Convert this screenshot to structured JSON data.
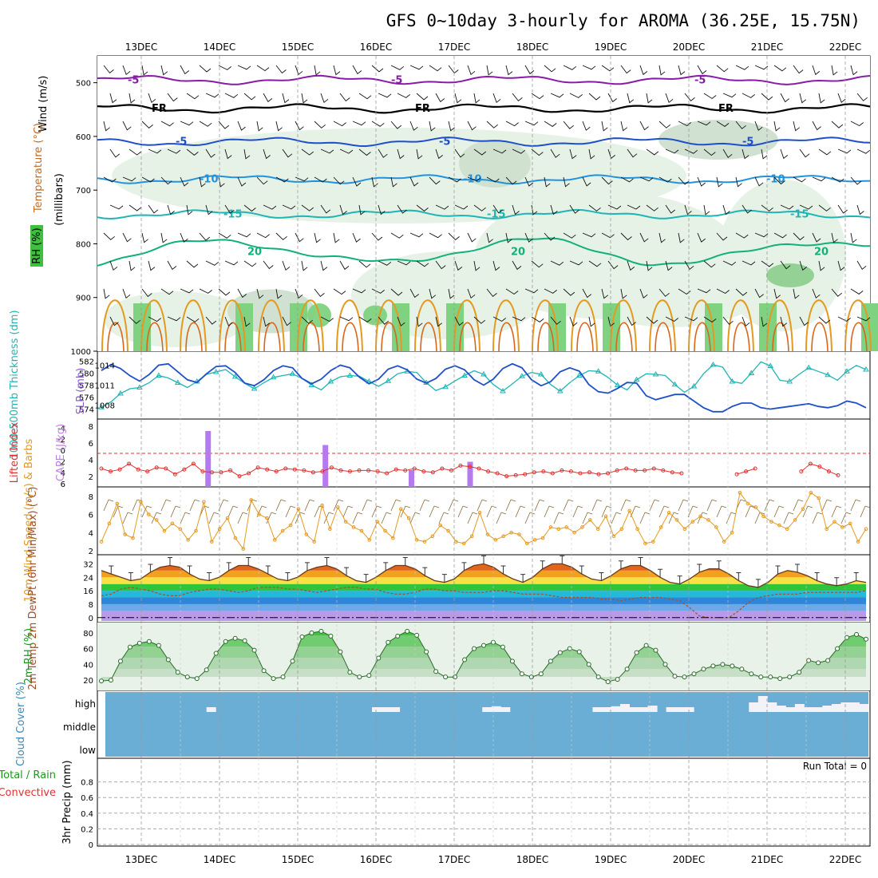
{
  "title": "GFS 0~10day 3-hourly for AROMA (36.25E, 15.75N)",
  "dates": [
    "13DEC",
    "14DEC",
    "15DEC",
    "16DEC",
    "17DEC",
    "18DEC",
    "19DEC",
    "20DEC",
    "21DEC",
    "22DEC"
  ],
  "colors": {
    "purple": "#8a1aa8",
    "blue": "#1f4fc8",
    "lightblue": "#1f93e0",
    "cyan": "#1fb5b5",
    "teal": "#12b07a",
    "orange": "#e49a20",
    "darkorange": "#d9661a",
    "magenta": "#c0157a",
    "rhgreen": "#3fbf3f",
    "cloud": "#6aaed6",
    "red": "#e03030",
    "cape": "#b57aee"
  },
  "chart_data": [
    {
      "type": "contour",
      "panel": "upper-air",
      "ylabel_parts": [
        "Wind (m/s)",
        "Temperature (°C)",
        "(millibars)"
      ],
      "rh_legend": "RH (%)",
      "ylim": [
        1000,
        450
      ],
      "yticks": [
        "500",
        "600",
        "700",
        "800",
        "900",
        "1000"
      ],
      "isotherms": [
        {
          "label": "-5",
          "level_mb": 495
        },
        {
          "label": "FR",
          "level_mb": 548
        },
        {
          "label": "-5",
          "level_mb": 610
        },
        {
          "label": "-10",
          "level_mb": 680
        },
        {
          "label": "-15",
          "level_mb": 745
        },
        {
          "label": "20",
          "level_mb": 815
        }
      ]
    },
    {
      "type": "line",
      "panel": "thickness-slp",
      "ylabel_left": "1000-500mb Thickness (dm)",
      "ylabel_right": "SLP (mb)",
      "yticks_left": [
        "582",
        "580",
        "578",
        "576",
        "574"
      ],
      "yticks_right": [
        "1014",
        "1011",
        "1008"
      ],
      "series": [
        {
          "name": "SLP",
          "values": [
            1013.2,
            1014.1,
            1013.5,
            1012.4,
            1011.6,
            1012.6,
            1014.0,
            1014.2,
            1013.0,
            1011.8,
            1011.4,
            1012.7,
            1013.8,
            1013.9,
            1012.9,
            1011.3,
            1010.9,
            1011.8,
            1013.2,
            1013.9,
            1013.6,
            1012.0,
            1011.2,
            1011.9,
            1013.2,
            1014.0,
            1013.6,
            1012.2,
            1011.2,
            1011.9,
            1013.4,
            1013.9,
            1013.3,
            1011.9,
            1011.3,
            1012.0,
            1013.4,
            1013.9,
            1013.3,
            1011.8,
            1011.0,
            1011.9,
            1013.5,
            1014.2,
            1013.6,
            1011.8,
            1010.9,
            1011.5,
            1013.0,
            1013.6,
            1013.1,
            1011.1,
            1010.0,
            1009.8,
            1010.5,
            1011.4,
            1011.3,
            1009.4,
            1008.8,
            1009.2,
            1009.6,
            1009.6,
            1008.6,
            1007.6,
            1007.0,
            1007.0,
            1007.8,
            1008.3,
            1008.3,
            1007.6,
            1007.4,
            1007.6,
            1007.8,
            1008.0,
            1008.2,
            1007.8,
            1007.6,
            1007.9,
            1008.6,
            1008.3,
            1007.6
          ]
        },
        {
          "name": "Thickness",
          "values": [
            574.3,
            575.2,
            576.6,
            577.4,
            577.6,
            578.4,
            579.6,
            579.2,
            578.4,
            577.6,
            578.6,
            579.8,
            580.2,
            580.6,
            579.4,
            578.3,
            577.4,
            578.4,
            579.3,
            579.6,
            579.9,
            579.1,
            578.0,
            577.2,
            578.6,
            579.4,
            579.6,
            579.5,
            578.6,
            577.8,
            578.7,
            579.9,
            580.3,
            580.1,
            578.4,
            577.1,
            577.7,
            578.7,
            579.6,
            580.4,
            579.8,
            578.1,
            577.0,
            578.2,
            579.5,
            580.1,
            579.8,
            578.1,
            577.0,
            578.4,
            579.6,
            580.4,
            580.3,
            579.3,
            578.0,
            577.2,
            578.9,
            579.9,
            579.8,
            579.6,
            578.1,
            576.8,
            577.8,
            579.9,
            581.4,
            581.0,
            578.6,
            578.3,
            580.0,
            581.9,
            581.2,
            578.8,
            578.6,
            579.8,
            580.9,
            580.3,
            579.7,
            578.8,
            580.3,
            581.3,
            580.6
          ]
        }
      ]
    },
    {
      "type": "bar+line",
      "panel": "cape-li",
      "ylabel_left": "Lifted Index",
      "ylabel_right": "CAPE (J/kg)",
      "yticks_left": [
        "-4",
        "-2",
        "0",
        "2",
        "4",
        "6"
      ],
      "yticks_right": [
        "8",
        "6",
        "4",
        "2"
      ],
      "series": [
        {
          "name": "CAPE",
          "bars": [
            {
              "x_day": 0.9,
              "value": 8.0
            },
            {
              "x_day": 2.4,
              "value": 6.0
            },
            {
              "x_day": 3.5,
              "value": 2.4
            },
            {
              "x_day": 4.25,
              "value": 3.6
            }
          ]
        },
        {
          "name": "Lifted Index",
          "values": [
            3.0,
            3.6,
            3.2,
            2.0,
            3.2,
            3.6,
            2.8,
            3.0,
            4.2,
            3.2,
            2.0,
            3.6,
            3.8,
            3.8,
            3.4,
            4.6,
            4.0,
            2.8,
            3.2,
            3.6,
            3.0,
            3.2,
            3.4,
            3.8,
            3.6,
            2.8,
            3.4,
            3.6,
            3.4,
            3.4,
            3.6,
            4.0,
            3.2,
            3.4,
            3.0,
            3.6,
            3.8,
            3.0,
            3.4,
            2.4,
            2.6,
            3.0,
            3.6,
            4.0,
            4.6,
            4.4,
            4.2,
            3.8,
            3.6,
            4.0,
            3.4,
            3.6,
            4.0,
            3.8,
            4.2,
            4.0,
            3.4,
            3.0,
            3.4,
            3.4,
            3.0,
            3.4,
            3.8,
            4.0,
            null,
            null,
            null,
            null,
            null,
            4.2,
            3.6,
            3.0,
            null,
            null,
            null,
            null,
            3.6,
            2.0,
            2.6,
            3.6,
            4.4
          ]
        }
      ]
    },
    {
      "type": "line",
      "panel": "wind-10m",
      "ylabel": "10m Wind Speed (m/s) & Barbs",
      "yticks": [
        "8",
        "6",
        "4",
        "2"
      ],
      "ylim": [
        2,
        8.6
      ],
      "series": [
        {
          "name": "Wind speed",
          "values": [
            3.0,
            5.0,
            7.2,
            3.8,
            3.4,
            7.4,
            6.0,
            5.4,
            4.2,
            5.0,
            4.4,
            3.2,
            4.2,
            7.4,
            3.0,
            4.4,
            5.6,
            3.4,
            2.2,
            7.6,
            6.0,
            5.6,
            3.2,
            4.2,
            4.8,
            6.6,
            3.8,
            3.0,
            7.0,
            4.4,
            6.8,
            5.2,
            4.6,
            4.2,
            3.2,
            5.2,
            4.2,
            3.4,
            6.6,
            5.6,
            3.2,
            3.0,
            3.6,
            4.8,
            4.2,
            3.0,
            2.8,
            3.6,
            6.2,
            3.8,
            3.2,
            3.6,
            4.0,
            3.8,
            2.8,
            3.2,
            3.4,
            4.6,
            4.4,
            4.6,
            4.0,
            4.6,
            5.4,
            4.4,
            5.8,
            3.6,
            4.4,
            6.4,
            4.4,
            2.8,
            3.0,
            4.6,
            6.2,
            5.4,
            4.4,
            5.2,
            5.8,
            5.4,
            4.6,
            3.0,
            4.0,
            8.4,
            7.2,
            6.8,
            5.8,
            5.2,
            4.8,
            4.4,
            5.4,
            6.6,
            8.4,
            7.8,
            4.4,
            5.2,
            4.6,
            5.0,
            3.0,
            4.4
          ]
        }
      ]
    },
    {
      "type": "area",
      "panel": "temperature",
      "ylabel": "2m Temp 2m DewPt (6hr Min/Max) (°C)",
      "yticks": [
        "32",
        "24",
        "16",
        "8",
        "0"
      ],
      "ylim": [
        -2,
        36
      ],
      "series": [
        {
          "name": "2m Temp",
          "values": [
            28,
            26,
            24,
            22,
            23,
            27,
            30,
            31,
            30,
            26,
            23,
            22,
            24,
            28,
            31,
            31,
            29,
            26,
            23,
            22,
            24,
            28,
            30,
            31,
            29,
            25,
            22,
            21,
            24,
            28,
            31,
            31,
            29,
            25,
            22,
            21,
            23,
            28,
            31,
            32,
            30,
            26,
            23,
            21,
            24,
            29,
            32,
            32,
            30,
            26,
            23,
            22,
            25,
            29,
            31,
            31,
            28,
            24,
            21,
            20,
            23,
            27,
            29,
            29,
            26,
            22,
            19,
            18,
            21,
            26,
            28,
            27,
            25,
            22,
            20,
            19,
            20,
            22,
            21
          ]
        },
        {
          "name": "2m DewPt",
          "values": [
            13,
            14,
            17,
            18,
            17,
            16,
            14,
            13,
            13,
            15,
            16,
            17,
            17,
            16,
            15,
            16,
            18,
            18,
            18,
            17,
            17,
            16,
            15,
            16,
            17,
            18,
            18,
            17,
            17,
            15,
            14,
            14,
            15,
            17,
            17,
            16,
            16,
            15,
            15,
            15,
            16,
            16,
            15,
            14,
            14,
            14,
            13,
            12,
            12,
            12,
            12,
            11,
            11,
            10,
            11,
            12,
            12,
            12,
            11,
            10,
            6,
            1,
            0,
            0,
            0,
            4,
            9,
            12,
            13,
            14,
            14,
            14,
            15,
            15,
            15,
            15,
            15,
            15,
            16
          ]
        }
      ]
    },
    {
      "type": "area",
      "panel": "rh-2m",
      "ylabel": "2m RH (%)",
      "yticks": [
        "80",
        "60",
        "40",
        "20"
      ],
      "ylim": [
        10,
        90
      ],
      "series": [
        {
          "name": "2m RH",
          "values": [
            19,
            20,
            44,
            62,
            67,
            69,
            64,
            46,
            30,
            24,
            22,
            33,
            54,
            69,
            73,
            70,
            58,
            32,
            22,
            24,
            44,
            75,
            80,
            82,
            76,
            56,
            30,
            24,
            26,
            48,
            68,
            76,
            82,
            77,
            56,
            31,
            24,
            24,
            46,
            60,
            64,
            68,
            62,
            44,
            28,
            24,
            28,
            44,
            55,
            60,
            56,
            40,
            24,
            18,
            21,
            34,
            55,
            64,
            58,
            40,
            25,
            24,
            28,
            34,
            38,
            40,
            38,
            34,
            28,
            24,
            24,
            22,
            24,
            30,
            45,
            42,
            45,
            60,
            74,
            78,
            72
          ]
        }
      ]
    },
    {
      "type": "bar",
      "panel": "cloud-cover",
      "ylabel": "Cloud Cover (%)",
      "yticks": [
        "high",
        "middle",
        "low"
      ],
      "series": [
        {
          "name": "high",
          "values": [
            0,
            0,
            0,
            0,
            0,
            0,
            0,
            0,
            0,
            0,
            0,
            5,
            0,
            0,
            0,
            0,
            0,
            0,
            0,
            0,
            0,
            0,
            0,
            0,
            0,
            0,
            0,
            0,
            0,
            5,
            5,
            5,
            0,
            0,
            0,
            0,
            0,
            0,
            0,
            0,
            0,
            5,
            8,
            5,
            0,
            0,
            0,
            0,
            0,
            0,
            0,
            0,
            0,
            5,
            5,
            8,
            15,
            5,
            5,
            10,
            0,
            5,
            5,
            5,
            0,
            0,
            0,
            0,
            0,
            0,
            20,
            40,
            20,
            10,
            5,
            15,
            5,
            5,
            10,
            15,
            20,
            20,
            15
          ]
        }
      ]
    },
    {
      "type": "line",
      "panel": "precipitation",
      "ylabel": "3hr Precip (mm)",
      "legend": [
        "Total / Rain",
        "Convective"
      ],
      "yticks": [
        "0.8",
        "0.6",
        "0.4",
        "0.2",
        "0"
      ],
      "ylim": [
        0,
        1.0
      ],
      "run_total": "Run Total = 0",
      "series": [
        {
          "name": "Total",
          "values": [
            0
          ]
        }
      ]
    }
  ]
}
